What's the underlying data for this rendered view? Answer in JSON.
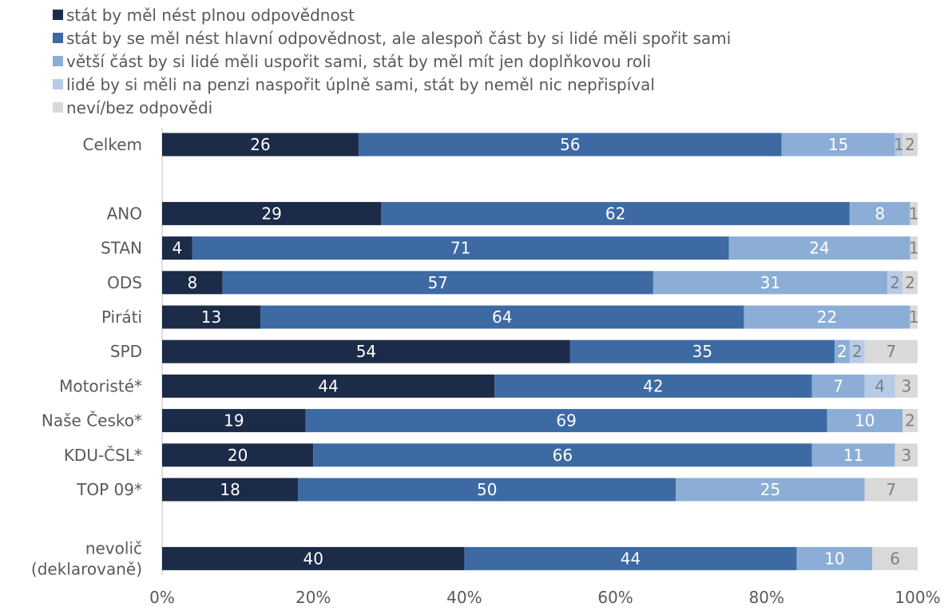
{
  "colors": {
    "series": [
      "#1c2b47",
      "#3d6aa3",
      "#8caed6",
      "#b6cbe6",
      "#d9d9d9"
    ],
    "label_light": "#ffffff",
    "label_dark": "#7f7f7f",
    "axis_text": "#595959",
    "axis_line": "#bfbfbf"
  },
  "chart_data": {
    "type": "bar",
    "orientation": "horizontal",
    "stacked": true,
    "percent_axis": true,
    "xlim": [
      0,
      100
    ],
    "xticks": [
      "0%",
      "20%",
      "40%",
      "60%",
      "80%",
      "100%"
    ],
    "legend_position": "top",
    "categories": [
      "Celkem",
      "",
      "ANO",
      "STAN",
      "ODS",
      "Piráti",
      "SPD",
      "Motoristé*",
      "Naše Česko*",
      "KDU-ČSL*",
      "TOP 09*",
      "",
      "nevolič\n(deklarovaně)"
    ],
    "series": [
      {
        "name": "stát by měl nést plnou odpovědnost",
        "values": [
          26,
          null,
          29,
          4,
          8,
          13,
          54,
          44,
          19,
          20,
          18,
          null,
          40
        ]
      },
      {
        "name": "stát by se měl nést hlavní odpovědnost, ale alespoň část by si lidé měli spořit sami",
        "values": [
          56,
          null,
          62,
          71,
          57,
          64,
          35,
          42,
          69,
          66,
          50,
          null,
          44
        ]
      },
      {
        "name": "větší část by si lidé měli uspořit sami, stát by měl mít jen doplňkovou roli",
        "values": [
          15,
          null,
          8,
          24,
          31,
          22,
          2,
          7,
          10,
          11,
          25,
          null,
          10
        ]
      },
      {
        "name": "lidé by si měli na penzi naspořit úplně sami, stát by neměl nic nepřispíval",
        "values": [
          1,
          null,
          0,
          0,
          2,
          0,
          2,
          4,
          0,
          0,
          0,
          null,
          0
        ]
      },
      {
        "name": "neví/bez odpovědi",
        "values": [
          2,
          null,
          1,
          1,
          2,
          1,
          7,
          3,
          2,
          3,
          7,
          null,
          6
        ]
      }
    ]
  }
}
